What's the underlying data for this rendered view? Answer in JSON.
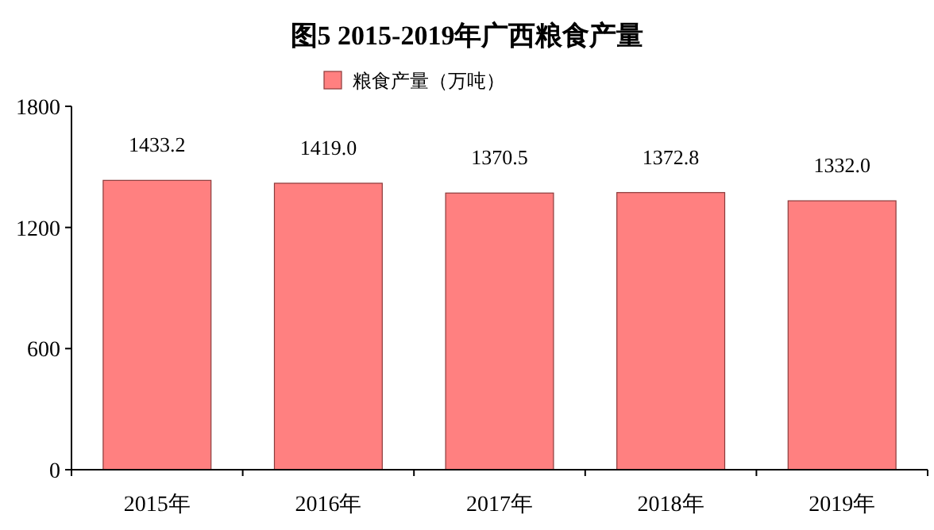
{
  "chart_data": {
    "type": "bar",
    "title": "图5 2015-2019年广西粮食产量",
    "categories": [
      "2015年",
      "2016年",
      "2017年",
      "2018年",
      "2019年"
    ],
    "series": [
      {
        "name": "粮食产量（万吨）",
        "color": "#ff8080",
        "values": [
          1433.2,
          1419.0,
          1370.5,
          1372.8,
          1332.0
        ],
        "value_labels": [
          "1433.2",
          "1419.0",
          "1370.5",
          "1372.8",
          "1332.0"
        ]
      }
    ],
    "ylim": [
      0,
      1800
    ],
    "yticks": [
      0,
      600,
      1200,
      1800
    ],
    "grid": false,
    "legend": "top"
  }
}
